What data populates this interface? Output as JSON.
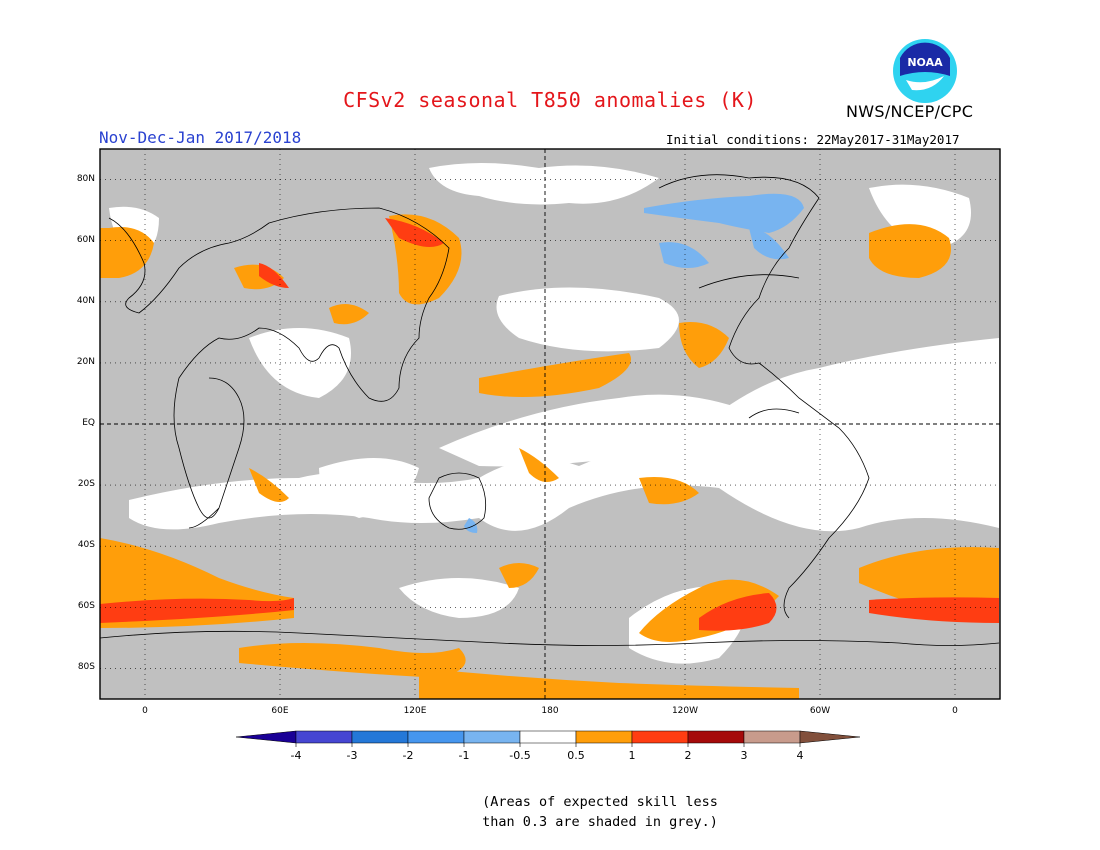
{
  "title": "CFSv2 seasonal T850 anomalies (K)",
  "organization": "NWS/NCEP/CPC",
  "logo_text": "NOAA",
  "period_label": "Nov-Dec-Jan 2017/2018",
  "initial_conditions": "Initial conditions: 22May2017-31May2017",
  "footnote": {
    "line1": "(Areas of expected skill less",
    "line2": "than 0.3 are shaded in grey.)"
  },
  "map": {
    "lat_range": [
      -90,
      90
    ],
    "lon_range": [
      -20,
      380
    ],
    "lat_ticks": [
      {
        "lat": 80,
        "label": "80N"
      },
      {
        "lat": 60,
        "label": "60N"
      },
      {
        "lat": 40,
        "label": "40N"
      },
      {
        "lat": 20,
        "label": "20N"
      },
      {
        "lat": 0,
        "label": "EQ"
      },
      {
        "lat": -20,
        "label": "20S"
      },
      {
        "lat": -40,
        "label": "40S"
      },
      {
        "lat": -60,
        "label": "60S"
      },
      {
        "lat": -80,
        "label": "80S"
      }
    ],
    "lon_ticks": [
      {
        "lon": 0,
        "label": "0"
      },
      {
        "lon": 60,
        "label": "60E"
      },
      {
        "lon": 120,
        "label": "120E"
      },
      {
        "lon": 180,
        "label": "180"
      },
      {
        "lon": 240,
        "label": "120W"
      },
      {
        "lon": 300,
        "label": "60W"
      },
      {
        "lon": 360,
        "label": "0"
      }
    ],
    "colors": {
      "grey_low_skill": "#c0c0c0",
      "anom_0_5_to_1": "#ff9e0a",
      "anom_1_to_2": "#ff3d12",
      "anom_neg_0_5_to_neg_1": "#78b4f0",
      "coast": "#000000"
    }
  },
  "colorbar": {
    "labels": [
      "-4",
      "-3",
      "-2",
      "-1",
      "-0.5",
      "0.5",
      "1",
      "2",
      "3",
      "4"
    ],
    "colors": [
      "#1a0096",
      "#4646d2",
      "#2478d8",
      "#4696ee",
      "#78b4f0",
      "#ffffff",
      "#ff9e0a",
      "#ff3d12",
      "#a50a0a",
      "#c89b8c",
      "#82503c"
    ]
  }
}
